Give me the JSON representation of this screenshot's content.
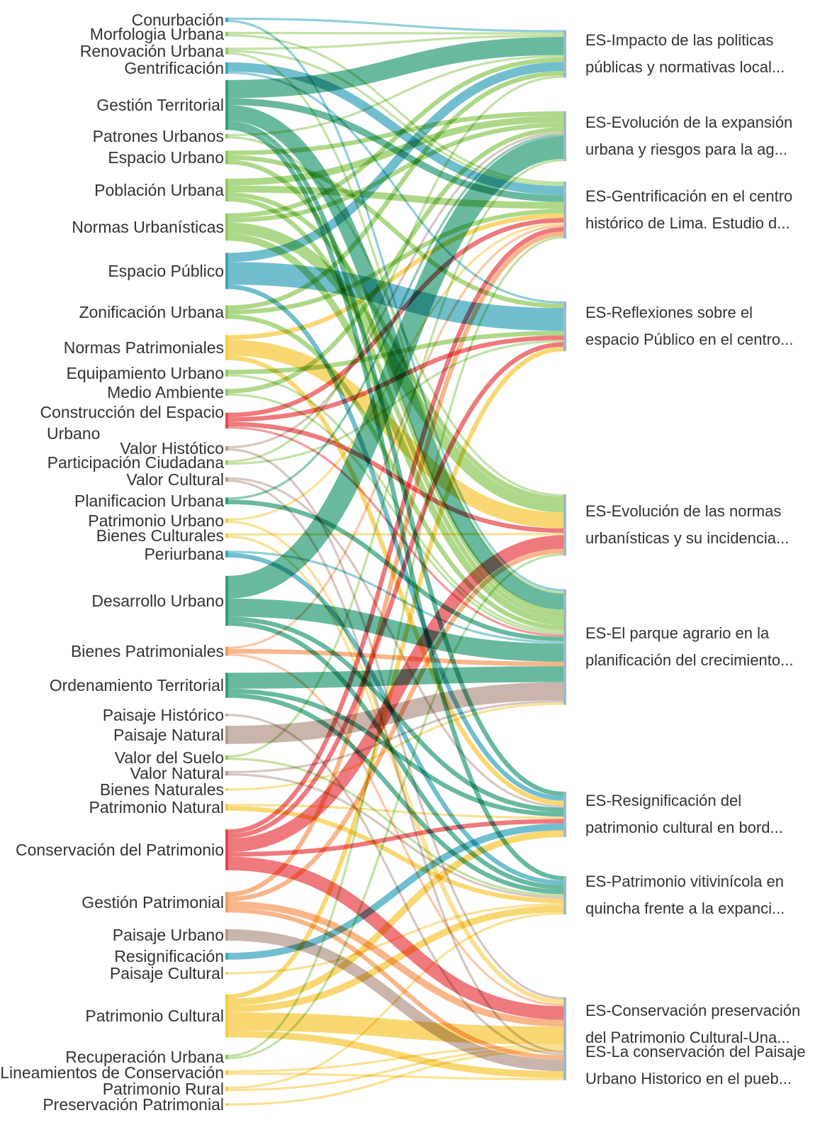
{
  "colors": {
    "green": "#5aa63e",
    "lightgreen": "#8fc95c",
    "teal": "#2e9e7a",
    "blue": "#3aa5bb",
    "yellow": "#f7c93d",
    "red": "#e8474c",
    "orange": "#f59a5d",
    "brown": "#b4998c"
  },
  "sources": [
    {
      "id": "conurbacion",
      "label": "Conurbación",
      "color": "blue"
    },
    {
      "id": "morfologia",
      "label": "Morfologia Urbana",
      "color": "lightgreen"
    },
    {
      "id": "renovacion",
      "label": "Renovación Urbana",
      "color": "lightgreen"
    },
    {
      "id": "gentrificacion",
      "label": "Gentrificación",
      "color": "blue"
    },
    {
      "id": "gestion_territorial",
      "label": "Gestión Territorial",
      "color": "teal"
    },
    {
      "id": "patrones",
      "label": "Patrones Urbanos",
      "color": "lightgreen"
    },
    {
      "id": "espacio_urbano",
      "label": "Espacio Urbano",
      "color": "lightgreen"
    },
    {
      "id": "poblacion",
      "label": "Población Urbana",
      "color": "lightgreen"
    },
    {
      "id": "normas_urb",
      "label": "Normas Urbanísticas",
      "color": "lightgreen"
    },
    {
      "id": "espacio_publico",
      "label": "Espacio Público",
      "color": "blue"
    },
    {
      "id": "zonificacion",
      "label": "Zonificación Urbana",
      "color": "lightgreen"
    },
    {
      "id": "normas_pat",
      "label": "Normas Patrimoniales",
      "color": "yellow"
    },
    {
      "id": "equipamiento",
      "label": "Equipamiento Urbano",
      "color": "lightgreen"
    },
    {
      "id": "medio_ambiente",
      "label": "Medio Ambiente",
      "color": "lightgreen"
    },
    {
      "id": "construccion",
      "label": "Construcción del Espacio",
      "label2": "Urbano",
      "color": "red"
    },
    {
      "id": "valor_historico",
      "label": "Valor Histótico",
      "color": "brown"
    },
    {
      "id": "participacion",
      "label": "Participación Ciudadana",
      "color": "lightgreen"
    },
    {
      "id": "valor_cultural",
      "label": "Valor Cultural",
      "color": "brown"
    },
    {
      "id": "planificacion",
      "label": "Planificacion Urbana",
      "color": "teal"
    },
    {
      "id": "patrimonio_urbano",
      "label": "Patrimonio Urbano",
      "color": "yellow"
    },
    {
      "id": "bienes_culturales",
      "label": "Bienes Culturales",
      "color": "yellow"
    },
    {
      "id": "periurbana",
      "label": "Periurbana",
      "color": "blue"
    },
    {
      "id": "desarrollo",
      "label": "Desarrollo Urbano",
      "color": "teal"
    },
    {
      "id": "bienes_pat",
      "label": "Bienes Patrimoniales",
      "color": "orange"
    },
    {
      "id": "ordenamiento",
      "label": "Ordenamiento Territorial",
      "color": "teal"
    },
    {
      "id": "paisaje_historico",
      "label": "Paisaje Histórico",
      "color": "brown"
    },
    {
      "id": "paisaje_natural",
      "label": "Paisaje Natural",
      "color": "brown"
    },
    {
      "id": "valor_suelo",
      "label": "Valor del Suelo",
      "color": "lightgreen"
    },
    {
      "id": "valor_natural",
      "label": "Valor Natural",
      "color": "brown"
    },
    {
      "id": "bienes_naturales",
      "label": "Bienes Naturales",
      "color": "yellow"
    },
    {
      "id": "patrimonio_natural",
      "label": "Patrimonio Natural",
      "color": "yellow"
    },
    {
      "id": "conservacion",
      "label": "Conservación del Patrimonio",
      "color": "red"
    },
    {
      "id": "gestion_pat",
      "label": "Gestión Patrimonial",
      "color": "orange"
    },
    {
      "id": "paisaje_urbano",
      "label": "Paisaje Urbano",
      "color": "brown"
    },
    {
      "id": "resignificacion",
      "label": "Resignificación",
      "color": "blue"
    },
    {
      "id": "paisaje_cultural",
      "label": "Paisaje Cultural",
      "color": "yellow"
    },
    {
      "id": "patrimonio_cultural",
      "label": "Patrimonio Cultural",
      "color": "yellow"
    },
    {
      "id": "recuperacion",
      "label": "Recuperación Urbana",
      "color": "lightgreen"
    },
    {
      "id": "lineamientos",
      "label": "Lineamientos de Conservación",
      "color": "yellow"
    },
    {
      "id": "patrimonio_rural",
      "label": "Patrimonio Rural",
      "color": "yellow"
    },
    {
      "id": "preservacion",
      "label": "Preservación Patrimonial",
      "color": "yellow"
    }
  ],
  "targets": [
    {
      "id": "t1",
      "line1": "ES-Impacto de las politicas",
      "line2": "públicas y normativas local..."
    },
    {
      "id": "t2",
      "line1": "ES-Evolución de la expansión",
      "line2": "urbana y riesgos para la ag..."
    },
    {
      "id": "t3",
      "line1": "ES-Gentrificación en el centro",
      "line2": "histórico de Lima. Estudio d..."
    },
    {
      "id": "t4",
      "line1": "ES-Reflexiones sobre el",
      "line2": "espacio Público en el centro..."
    },
    {
      "id": "t5",
      "line1": "ES-Evolución de las normas",
      "line2": "urbanísticas y su incidencia..."
    },
    {
      "id": "t6",
      "line1": "ES-El parque agrario en la",
      "line2": "planificación del crecimiento..."
    },
    {
      "id": "t7",
      "line1": "ES-Resignificación del",
      "line2": "patrimonio cultural en bord..."
    },
    {
      "id": "t8",
      "line1": "ES-Patrimonio vitivinícola en",
      "line2": "quincha frente a la expanci..."
    },
    {
      "id": "t9",
      "line1": "ES-Conservación preservación",
      "line2": "del Patrimonio Cultural-Una..."
    },
    {
      "id": "t10",
      "line1": "ES-La conservación del Paisaje",
      "line2": "Urbano Historico en el pueb..."
    }
  ],
  "chart_data": {
    "type": "sankey",
    "links": [
      {
        "s": "conurbacion",
        "t": "t1",
        "v": 1
      },
      {
        "s": "conurbacion",
        "t": "t6",
        "v": 1
      },
      {
        "s": "morfologia",
        "t": "t1",
        "v": 1
      },
      {
        "s": "morfologia",
        "t": "t3",
        "v": 1
      },
      {
        "s": "renovacion",
        "t": "t1",
        "v": 1
      },
      {
        "s": "renovacion",
        "t": "t3",
        "v": 1
      },
      {
        "s": "renovacion",
        "t": "t6",
        "v": 1
      },
      {
        "s": "gentrificacion",
        "t": "t3",
        "v": 4
      },
      {
        "s": "gentrificacion",
        "t": "t4",
        "v": 1
      },
      {
        "s": "gestion_territorial",
        "t": "t1",
        "v": 8
      },
      {
        "s": "gestion_territorial",
        "t": "t3",
        "v": 3
      },
      {
        "s": "gestion_territorial",
        "t": "t6",
        "v": 7
      },
      {
        "s": "gestion_territorial",
        "t": "t7",
        "v": 2
      },
      {
        "s": "gestion_territorial",
        "t": "t8",
        "v": 2
      },
      {
        "s": "patrones",
        "t": "t1",
        "v": 1
      },
      {
        "s": "patrones",
        "t": "t5",
        "v": 1
      },
      {
        "s": "espacio_urbano",
        "t": "t2",
        "v": 2
      },
      {
        "s": "espacio_urbano",
        "t": "t4",
        "v": 2
      },
      {
        "s": "espacio_urbano",
        "t": "t6",
        "v": 2
      },
      {
        "s": "poblacion",
        "t": "t2",
        "v": 3
      },
      {
        "s": "poblacion",
        "t": "t3",
        "v": 3
      },
      {
        "s": "poblacion",
        "t": "t5",
        "v": 2
      },
      {
        "s": "poblacion",
        "t": "t6",
        "v": 2
      },
      {
        "s": "normas_urb",
        "t": "t1",
        "v": 2
      },
      {
        "s": "normas_urb",
        "t": "t2",
        "v": 2
      },
      {
        "s": "normas_urb",
        "t": "t5",
        "v": 5
      },
      {
        "s": "normas_urb",
        "t": "t6",
        "v": 3
      },
      {
        "s": "espacio_publico",
        "t": "t1",
        "v": 4
      },
      {
        "s": "espacio_publico",
        "t": "t4",
        "v": 10
      },
      {
        "s": "espacio_publico",
        "t": "t7",
        "v": 2
      },
      {
        "s": "zonificacion",
        "t": "t1",
        "v": 2
      },
      {
        "s": "zonificacion",
        "t": "t3",
        "v": 2
      },
      {
        "s": "zonificacion",
        "t": "t6",
        "v": 2
      },
      {
        "s": "normas_pat",
        "t": "t3",
        "v": 2
      },
      {
        "s": "normas_pat",
        "t": "t5",
        "v": 7
      },
      {
        "s": "normas_pat",
        "t": "t7",
        "v": 2
      },
      {
        "s": "equipamiento",
        "t": "t4",
        "v": 2
      },
      {
        "s": "equipamiento",
        "t": "t6",
        "v": 1
      },
      {
        "s": "medio_ambiente",
        "t": "t2",
        "v": 2
      },
      {
        "s": "medio_ambiente",
        "t": "t6",
        "v": 1
      },
      {
        "s": "construccion",
        "t": "t3",
        "v": 2
      },
      {
        "s": "construccion",
        "t": "t4",
        "v": 2
      },
      {
        "s": "construccion",
        "t": "t5",
        "v": 2
      },
      {
        "s": "construccion",
        "t": "t6",
        "v": 1
      },
      {
        "s": "valor_historico",
        "t": "t2",
        "v": 1
      },
      {
        "s": "valor_historico",
        "t": "t9",
        "v": 1
      },
      {
        "s": "participacion",
        "t": "t1",
        "v": 1
      },
      {
        "s": "participacion",
        "t": "t4",
        "v": 1
      },
      {
        "s": "valor_cultural",
        "t": "t7",
        "v": 1
      },
      {
        "s": "valor_cultural",
        "t": "t10",
        "v": 1
      },
      {
        "s": "planificacion",
        "t": "t2",
        "v": 1
      },
      {
        "s": "planificacion",
        "t": "t6",
        "v": 2
      },
      {
        "s": "patrimonio_urbano",
        "t": "t3",
        "v": 1
      },
      {
        "s": "patrimonio_urbano",
        "t": "t9",
        "v": 1
      },
      {
        "s": "bienes_culturales",
        "t": "t5",
        "v": 1
      },
      {
        "s": "bienes_culturales",
        "t": "t9",
        "v": 1
      },
      {
        "s": "periurbana",
        "t": "t6",
        "v": 1
      },
      {
        "s": "periurbana",
        "t": "t8",
        "v": 2
      },
      {
        "s": "desarrollo",
        "t": "t2",
        "v": 10
      },
      {
        "s": "desarrollo",
        "t": "t6",
        "v": 8
      },
      {
        "s": "desarrollo",
        "t": "t7",
        "v": 2
      },
      {
        "s": "desarrollo",
        "t": "t8",
        "v": 2
      },
      {
        "s": "bienes_pat",
        "t": "t3",
        "v": 1
      },
      {
        "s": "bienes_pat",
        "t": "t6",
        "v": 2
      },
      {
        "s": "bienes_pat",
        "t": "t9",
        "v": 1
      },
      {
        "s": "ordenamiento",
        "t": "t6",
        "v": 7
      },
      {
        "s": "ordenamiento",
        "t": "t7",
        "v": 2
      },
      {
        "s": "ordenamiento",
        "t": "t8",
        "v": 2
      },
      {
        "s": "paisaje_historico",
        "t": "t10",
        "v": 1
      },
      {
        "s": "paisaje_natural",
        "t": "t6",
        "v": 8
      },
      {
        "s": "valor_suelo",
        "t": "t2",
        "v": 1
      },
      {
        "s": "valor_suelo",
        "t": "t8",
        "v": 1
      },
      {
        "s": "valor_natural",
        "t": "t6",
        "v": 1
      },
      {
        "s": "valor_natural",
        "t": "t8",
        "v": 1
      },
      {
        "s": "bienes_naturales",
        "t": "t6",
        "v": 1
      },
      {
        "s": "patrimonio_natural",
        "t": "t7",
        "v": 1
      },
      {
        "s": "patrimonio_natural",
        "t": "t8",
        "v": 2
      },
      {
        "s": "conservacion",
        "t": "t3",
        "v": 2
      },
      {
        "s": "conservacion",
        "t": "t4",
        "v": 2
      },
      {
        "s": "conservacion",
        "t": "t5",
        "v": 6
      },
      {
        "s": "conservacion",
        "t": "t7",
        "v": 2
      },
      {
        "s": "conservacion",
        "t": "t9",
        "v": 6
      },
      {
        "s": "gestion_pat",
        "t": "t3",
        "v": 2
      },
      {
        "s": "gestion_pat",
        "t": "t5",
        "v": 2
      },
      {
        "s": "gestion_pat",
        "t": "t9",
        "v": 3
      },
      {
        "s": "gestion_pat",
        "t": "t10",
        "v": 2
      },
      {
        "s": "paisaje_urbano",
        "t": "t10",
        "v": 5
      },
      {
        "s": "resignificacion",
        "t": "t7",
        "v": 3
      },
      {
        "s": "paisaje_cultural",
        "t": "t8",
        "v": 1
      },
      {
        "s": "patrimonio_cultural",
        "t": "t4",
        "v": 2
      },
      {
        "s": "patrimonio_cultural",
        "t": "t7",
        "v": 3
      },
      {
        "s": "patrimonio_cultural",
        "t": "t8",
        "v": 3
      },
      {
        "s": "patrimonio_cultural",
        "t": "t9",
        "v": 8
      },
      {
        "s": "patrimonio_cultural",
        "t": "t10",
        "v": 3
      },
      {
        "s": "recuperacion",
        "t": "t3",
        "v": 1
      },
      {
        "s": "recuperacion",
        "t": "t5",
        "v": 1
      },
      {
        "s": "lineamientos",
        "t": "t9",
        "v": 1
      },
      {
        "s": "lineamientos",
        "t": "t10",
        "v": 1
      },
      {
        "s": "patrimonio_rural",
        "t": "t8",
        "v": 1
      },
      {
        "s": "patrimonio_rural",
        "t": "t9",
        "v": 1
      },
      {
        "s": "preservacion",
        "t": "t9",
        "v": 1
      }
    ]
  }
}
